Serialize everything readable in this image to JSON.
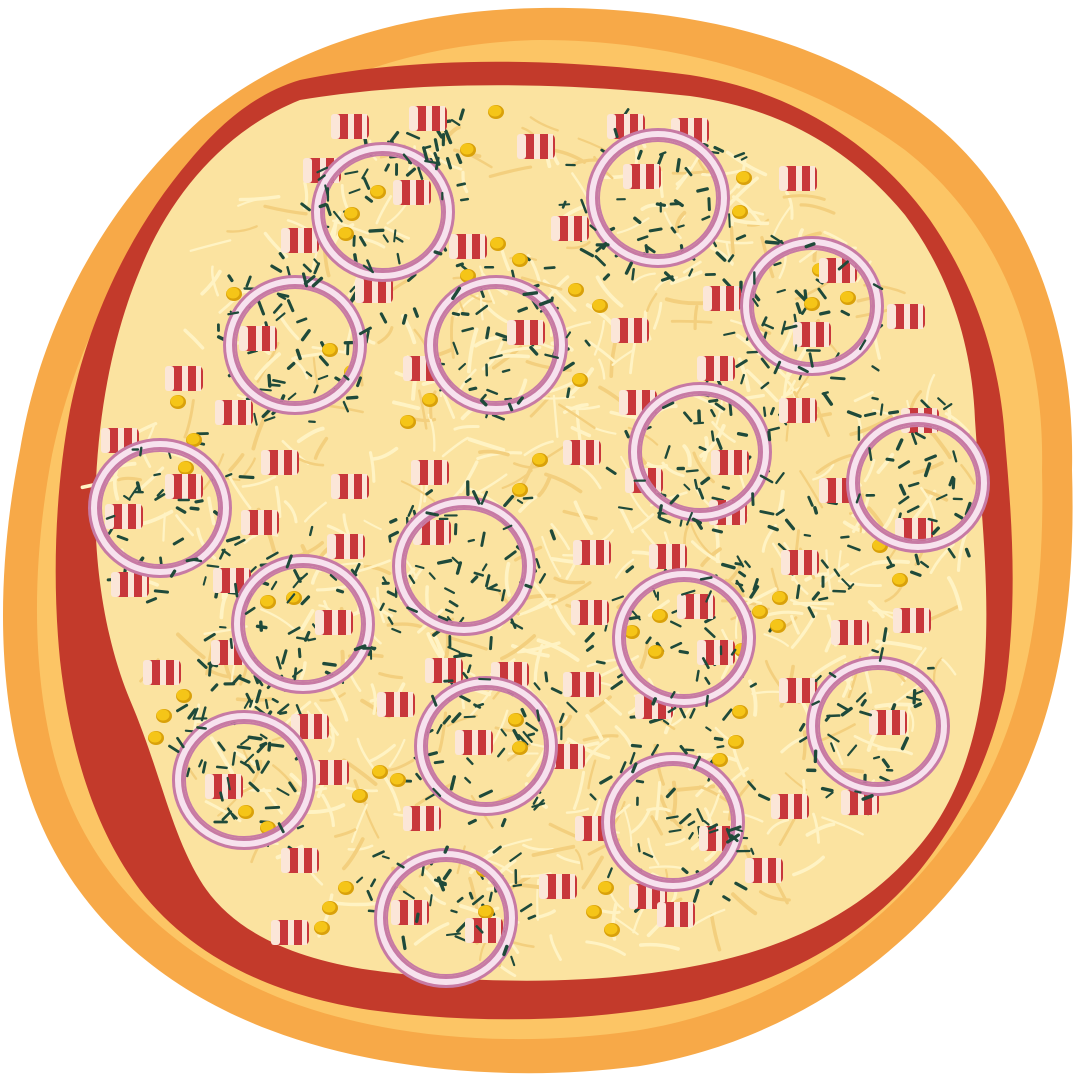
{
  "pizza": {
    "toppings": [
      "bacon",
      "red-onion-ring",
      "corn",
      "herbs"
    ],
    "colors": {
      "background": "#ffffff",
      "crust_outer": "#f7a948",
      "crust_inner": "#fcc565",
      "crust_highlight": "#fdd98a",
      "sauce": "#c33a2b",
      "cheese_base": "#fbe3a0",
      "cheese_shred": "#fff3c4",
      "cheese_shadow": "#f3cf7e",
      "bacon_fat": "#fbe6d8",
      "bacon_meat": "#c8373b",
      "onion_outer": "#c77aa4",
      "onion_inner": "#f7e2ee",
      "corn": "#f5c518",
      "corn_shade": "#d9a10a",
      "herb": "#1f4a3a"
    }
  }
}
